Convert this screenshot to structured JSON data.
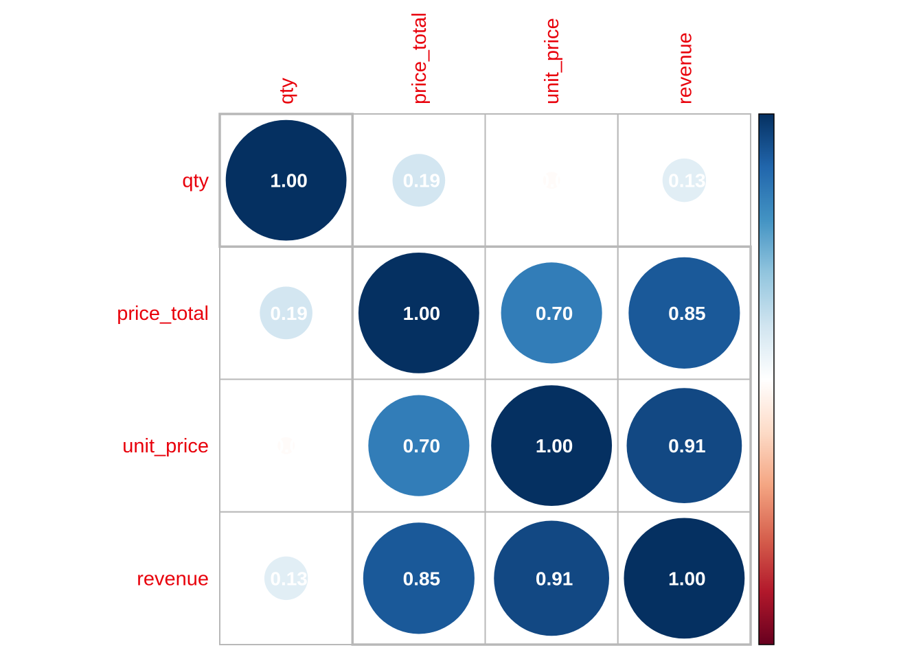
{
  "chart_data": {
    "type": "heatmap",
    "variables": [
      "qty",
      "price_total",
      "unit_price",
      "revenue"
    ],
    "matrix": [
      [
        1.0,
        0.19,
        -0.02,
        0.13
      ],
      [
        0.19,
        1.0,
        0.7,
        0.85
      ],
      [
        -0.02,
        0.7,
        1.0,
        0.91
      ],
      [
        0.13,
        0.85,
        0.91,
        1.0
      ]
    ],
    "value_labels": [
      [
        "1.00",
        "0.19",
        "-0.02",
        "0.13"
      ],
      [
        "0.19",
        "1.00",
        "0.70",
        "0.85"
      ],
      [
        "-0.02",
        "0.70",
        "1.00",
        "0.91"
      ],
      [
        "0.13",
        "0.85",
        "0.91",
        "1.00"
      ]
    ],
    "marker": "circle",
    "color_scale": {
      "range": [
        -1,
        1
      ],
      "colors": [
        "#67001f",
        "#b2182b",
        "#d6604d",
        "#f4a582",
        "#fddbc7",
        "#ffffff",
        "#d1e5f0",
        "#92c5de",
        "#4393c3",
        "#2166ac",
        "#053061"
      ]
    },
    "label_color": "#e8000b",
    "legend": "right",
    "grid": true
  }
}
